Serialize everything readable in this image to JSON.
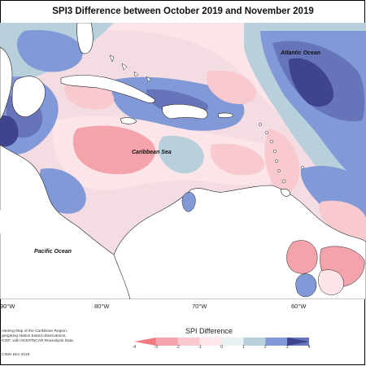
{
  "title": "SPI3 Difference between October 2019 and November 2019",
  "labels": {
    "atlantic": "Atlantic Ocean",
    "caribbean": "Caribbean Sea",
    "pacific": "Pacific Ocean"
  },
  "longitudes": [
    "90°W",
    "80°W",
    "70°W",
    "60°W"
  ],
  "legend": {
    "title": "SPI Difference",
    "ticks": [
      "-4",
      "-3",
      "-2",
      "-1",
      "0",
      "1",
      "2",
      "3",
      "4"
    ],
    "colors": [
      "#ef7a80",
      "#f4a3aa",
      "#f8c9cf",
      "#fce6ea",
      "#e8f1f4",
      "#b8cfdc",
      "#8299d8",
      "#6674ba",
      "#3f4490"
    ]
  },
  "credits": {
    "line1": "nitoring Map of the Caribbean Region.",
    "line2": "gregating station based observations,",
    "line3": "ICDF, with NCEP/NCAR Reanalysis Data.",
    "line4": "CIMH Dec-2019"
  }
}
